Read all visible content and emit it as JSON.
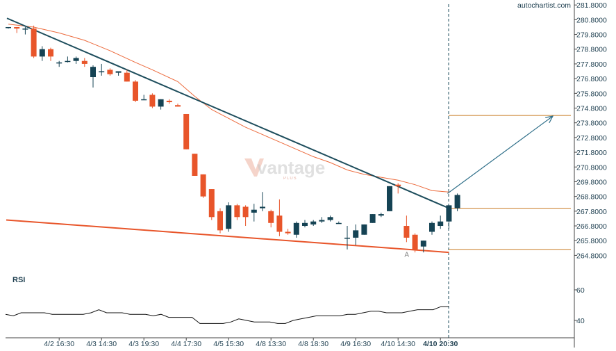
{
  "brand": "autochartist.com",
  "watermark": {
    "text": "vantage",
    "sub": "PLUS"
  },
  "rsi_label": "RSI",
  "annotation_label": "A",
  "colors": {
    "bull": "#154354",
    "bear": "#e8552a",
    "upper_trendline": "#1d4d5c",
    "lower_trendline": "#e8552a",
    "moving_average": "#ec6a3c",
    "target_level": "#c87a22",
    "arrow": "#2f6f89",
    "rsi_line": "#111111",
    "grid": "#e6e6e6",
    "axis": "#444444",
    "time_marker": "#1d4d5c"
  },
  "chart_data": [
    {
      "type": "candlestick",
      "title": "",
      "y_axis": {
        "range": [
          264.3,
          281.95
        ],
        "ticks": [
          "281.8000",
          "280.8000",
          "279.8000",
          "278.8000",
          "277.8000",
          "276.8000",
          "275.8000",
          "274.8000",
          "273.8000",
          "272.8000",
          "271.8000",
          "270.8000",
          "269.8000",
          "268.8000",
          "267.8000",
          "266.8000",
          "265.8000",
          "264.8000"
        ],
        "tick_values": [
          281.8,
          280.8,
          279.8,
          278.8,
          277.8,
          276.8,
          275.8,
          274.8,
          273.8,
          272.8,
          271.8,
          270.8,
          269.8,
          268.8,
          267.8,
          266.8,
          265.8,
          264.8
        ]
      },
      "x_axis": {
        "labels": [
          "4/2 16:30",
          "4/3 14:30",
          "4/3 19:30",
          "4/4 17:30",
          "4/5 15:30",
          "4/8 13:30",
          "4/8 18:30",
          "4/9 16:30",
          "4/10 14:30",
          "4/10 20:30"
        ],
        "label_candle_index": [
          6,
          11,
          16,
          21,
          26,
          31,
          36,
          41,
          46,
          51
        ]
      },
      "candles": [
        [
          280.3,
          280.3,
          280.2,
          280.3
        ],
        [
          280.3,
          280.3,
          279.9,
          280.2
        ],
        [
          280.2,
          280.3,
          279.8,
          280.2
        ],
        [
          280.2,
          280.4,
          278.2,
          278.3
        ],
        [
          278.3,
          279.0,
          278.0,
          278.8
        ],
        [
          278.8,
          278.9,
          278.0,
          278.3
        ],
        [
          277.9,
          278.0,
          277.6,
          277.9
        ],
        [
          278.0,
          278.3,
          277.9,
          278.0
        ],
        [
          278.0,
          278.3,
          277.8,
          278.2
        ],
        [
          278.0,
          278.2,
          277.6,
          277.8
        ],
        [
          276.9,
          277.7,
          276.2,
          277.6
        ],
        [
          277.3,
          277.8,
          277.0,
          277.3
        ],
        [
          277.4,
          277.5,
          277.0,
          277.1
        ],
        [
          277.2,
          277.3,
          277.0,
          277.3
        ],
        [
          277.2,
          277.4,
          276.6,
          276.6
        ],
        [
          276.6,
          276.7,
          275.2,
          275.3
        ],
        [
          275.4,
          275.7,
          275.4,
          275.4
        ],
        [
          275.7,
          275.8,
          274.8,
          274.9
        ],
        [
          274.9,
          275.4,
          274.7,
          275.4
        ],
        [
          275.3,
          275.4,
          275.1,
          275.2
        ],
        [
          275.0,
          275.1,
          274.9,
          274.9
        ],
        [
          274.4,
          274.4,
          272.0,
          272.0
        ],
        [
          271.7,
          271.7,
          270.2,
          270.2
        ],
        [
          270.3,
          270.3,
          268.7,
          268.8
        ],
        [
          269.3,
          269.3,
          267.2,
          267.4
        ],
        [
          267.8,
          268.0,
          266.3,
          266.5
        ],
        [
          266.6,
          268.4,
          266.4,
          268.2
        ],
        [
          268.2,
          268.3,
          267.2,
          267.4
        ],
        [
          268.1,
          268.2,
          266.8,
          267.4
        ],
        [
          267.7,
          268.3,
          267.1,
          267.9
        ],
        [
          268.0,
          269.1,
          267.8,
          268.1
        ],
        [
          267.8,
          267.9,
          266.7,
          267.0
        ],
        [
          267.5,
          268.6,
          266.1,
          266.4
        ],
        [
          266.4,
          266.6,
          266.2,
          266.3
        ],
        [
          266.2,
          267.1,
          266.0,
          267.0
        ],
        [
          266.8,
          267.2,
          266.7,
          267.0
        ],
        [
          266.9,
          267.2,
          266.8,
          267.1
        ],
        [
          267.1,
          267.4,
          267.0,
          267.2
        ],
        [
          267.2,
          267.5,
          267.1,
          267.4
        ],
        [
          267.0,
          267.1,
          267.0,
          267.0
        ],
        [
          266.0,
          266.8,
          265.2,
          266.0
        ],
        [
          266.0,
          266.9,
          265.5,
          266.5
        ],
        [
          266.2,
          266.9,
          266.2,
          266.9
        ],
        [
          267.0,
          267.6,
          267.0,
          267.6
        ],
        [
          267.5,
          267.7,
          267.4,
          267.6
        ],
        [
          267.8,
          269.5,
          267.8,
          269.5
        ],
        [
          269.6,
          269.7,
          269.0,
          269.5
        ],
        [
          266.8,
          267.5,
          265.7,
          266.0
        ],
        [
          266.2,
          266.3,
          265.0,
          265.2
        ],
        [
          265.4,
          265.8,
          265.0,
          265.8
        ],
        [
          266.4,
          267.1,
          266.2,
          267.0
        ],
        [
          266.8,
          267.5,
          266.6,
          267.1
        ],
        [
          267.1,
          268.2,
          266.6,
          268.2
        ],
        [
          268.0,
          269.0,
          267.8,
          268.9
        ]
      ],
      "moving_average": [
        [
          0,
          280.5
        ],
        [
          3,
          280.3
        ],
        [
          6,
          279.9
        ],
        [
          9,
          279.4
        ],
        [
          12,
          278.7
        ],
        [
          15,
          277.9
        ],
        [
          17,
          277.4
        ],
        [
          20,
          276.6
        ],
        [
          22,
          275.6
        ],
        [
          24,
          274.7
        ],
        [
          26,
          274.1
        ],
        [
          28,
          273.5
        ],
        [
          30,
          273.0
        ],
        [
          32,
          272.5
        ],
        [
          34,
          272.0
        ],
        [
          36,
          271.5
        ],
        [
          38,
          271.1
        ],
        [
          40,
          270.6
        ],
        [
          42,
          270.3
        ],
        [
          44,
          270.1
        ],
        [
          46,
          269.9
        ],
        [
          48,
          269.6
        ],
        [
          50,
          269.2
        ],
        [
          52,
          269.1
        ]
      ],
      "upper_trendline": [
        [
          0,
          280.9
        ],
        [
          52,
          268.0
        ]
      ],
      "lower_trendline": [
        [
          0,
          267.2
        ],
        [
          52,
          265.0
        ]
      ],
      "target_level": 274.3,
      "breakout_level": 268.0,
      "support_level": 265.2,
      "arrow": {
        "from": [
          52,
          269.0
        ],
        "to": [
          64,
          274.3
        ]
      },
      "annotation_at": {
        "index": 47,
        "value": 264.9
      }
    },
    {
      "type": "line",
      "title": "RSI",
      "y_axis": {
        "range": [
          30,
          70
        ],
        "ticks": [
          "60",
          "40"
        ],
        "tick_values": [
          60,
          40
        ]
      },
      "values": [
        44,
        43,
        45,
        45,
        45,
        45,
        44,
        44,
        44,
        44,
        44,
        45,
        47,
        45,
        45,
        45,
        44,
        44,
        44,
        43,
        44,
        42,
        42,
        42,
        42,
        38,
        38,
        38,
        38,
        39,
        41,
        40,
        39,
        39,
        39,
        38,
        38,
        40,
        41,
        42,
        43,
        43,
        43,
        43,
        44,
        44,
        45,
        46,
        46,
        45,
        45,
        45,
        46,
        47,
        47,
        47,
        49,
        49
      ]
    }
  ]
}
